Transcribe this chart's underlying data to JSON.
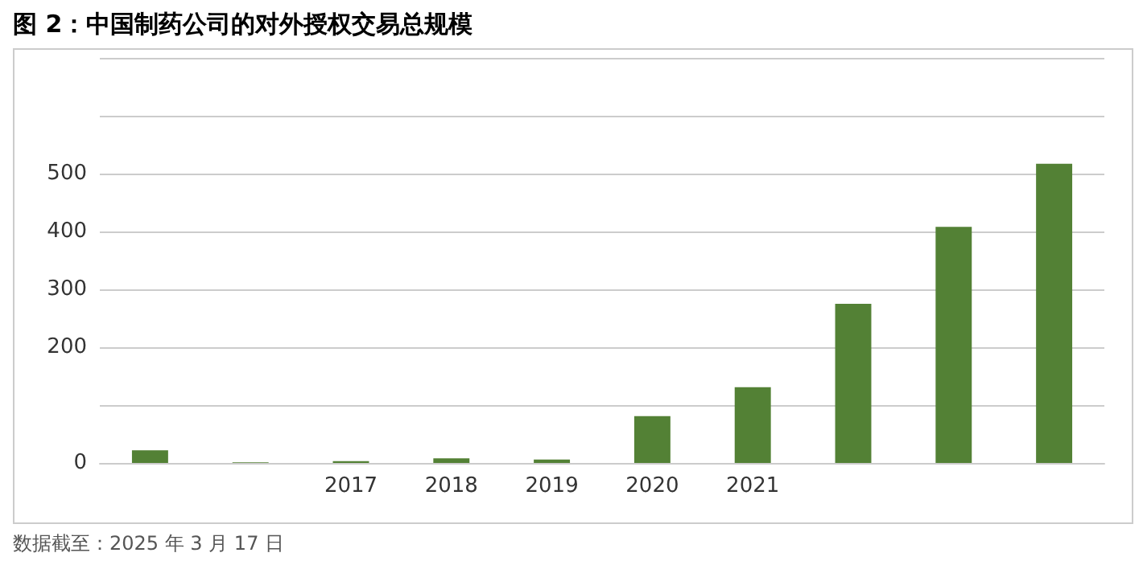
{
  "chart_data": {
    "type": "bar",
    "title": "图 2：中国制药公司的对外授权交易总规模",
    "categories": [
      null,
      null,
      "2017",
      "2018",
      "2019",
      "2020",
      "2021",
      null,
      null,
      null
    ],
    "values": [
      22,
      1,
      3,
      8,
      6,
      81,
      131,
      275,
      408,
      517
    ],
    "color": "#538135",
    "ylim": [
      0,
      700
    ],
    "yticks": [
      0,
      {
        "value": 100,
        "label": null
      },
      200,
      300,
      400,
      500,
      {
        "value": 600,
        "label": null
      },
      {
        "value": 700,
        "label": null
      }
    ],
    "grid": "y",
    "annotations": [
      "数据截至：2025 年 3 月 17 日"
    ]
  }
}
